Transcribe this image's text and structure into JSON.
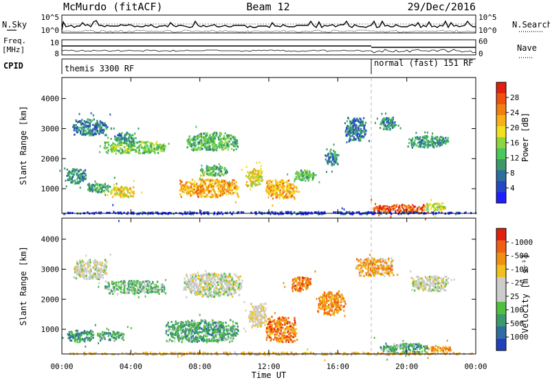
{
  "header": {
    "station": "McMurdo (fitACF)",
    "beam": "Beam 12",
    "date": "29/Dec/2016"
  },
  "strip_panels": {
    "nsky_label": "N.Sky",
    "nsky_ticks": [
      "10^5",
      "10^0"
    ],
    "nsearch_label": "N.Search",
    "nsearch_ticks": [
      "10^5",
      "10^0"
    ],
    "freq_label_1": "Freq.",
    "freq_label_2": "[MHz]",
    "freq_ticks": [
      "10",
      "8"
    ],
    "nave_label": "Nave",
    "nave_ticks": [
      "60",
      "0"
    ],
    "cpid_label": "CPID",
    "cpid_segments": [
      {
        "label": "themis 3300 RF",
        "start_hour": 0,
        "end_hour": 18
      },
      {
        "label": "normal (fast) 151 RF",
        "start_hour": 18,
        "end_hour": 24
      }
    ]
  },
  "chart_data": [
    {
      "type": "heatmap",
      "title": "",
      "ylabel": "Slant Range [km]",
      "xlim": [
        0,
        24
      ],
      "ylim": [
        180,
        4700
      ],
      "yticks": [
        "1000",
        "2000",
        "3000",
        "4000"
      ],
      "colorbar": {
        "label": "Power [dB]",
        "ticks": [
          "4",
          "8",
          "12",
          "16",
          "20",
          "24",
          "28"
        ],
        "colors": [
          "#1e1eff",
          "#2646c8",
          "#2c6e9e",
          "#3c9a6a",
          "#4cc85a",
          "#8ed43e",
          "#f0e020",
          "#f8b018",
          "#f08010",
          "#f05010",
          "#e02010"
        ]
      },
      "regions": [
        {
          "x": [
            0.6,
            2.6
          ],
          "y": [
            2800,
            3350
          ],
          "level": 0.25
        },
        {
          "x": [
            2.4,
            6.0
          ],
          "y": [
            2200,
            2600
          ],
          "level": 0.45
        },
        {
          "x": [
            3.0,
            4.2
          ],
          "y": [
            2550,
            2900
          ],
          "level": 0.3
        },
        {
          "x": [
            7.2,
            10.2
          ],
          "y": [
            2300,
            2900
          ],
          "level": 0.4
        },
        {
          "x": [
            0.2,
            1.4
          ],
          "y": [
            1200,
            1700
          ],
          "level": 0.3
        },
        {
          "x": [
            1.4,
            2.8
          ],
          "y": [
            900,
            1200
          ],
          "level": 0.35
        },
        {
          "x": [
            2.8,
            4.2
          ],
          "y": [
            750,
            1100
          ],
          "level": 0.6
        },
        {
          "x": [
            6.8,
            10.2
          ],
          "y": [
            750,
            1350
          ],
          "level": 0.7
        },
        {
          "x": [
            8.0,
            9.6
          ],
          "y": [
            1450,
            1800
          ],
          "level": 0.4
        },
        {
          "x": [
            10.6,
            11.6
          ],
          "y": [
            1100,
            1700
          ],
          "level": 0.6
        },
        {
          "x": [
            11.8,
            13.6
          ],
          "y": [
            700,
            1350
          ],
          "level": 0.7
        },
        {
          "x": [
            13.4,
            14.6
          ],
          "y": [
            1300,
            1650
          ],
          "level": 0.4
        },
        {
          "x": [
            15.2,
            16.0
          ],
          "y": [
            1800,
            2300
          ],
          "level": 0.3
        },
        {
          "x": [
            16.4,
            17.6
          ],
          "y": [
            2600,
            3400
          ],
          "level": 0.25
        },
        {
          "x": [
            18.0,
            21.2
          ],
          "y": [
            220,
            500
          ],
          "level": 0.85
        },
        {
          "x": [
            21.0,
            22.2
          ],
          "y": [
            300,
            550
          ],
          "level": 0.55
        },
        {
          "x": [
            20.0,
            22.4
          ],
          "y": [
            2400,
            2800
          ],
          "level": 0.3
        },
        {
          "x": [
            18.4,
            19.4
          ],
          "y": [
            3000,
            3400
          ],
          "level": 0.3
        },
        {
          "x": [
            0.0,
            24.0
          ],
          "y": [
            180,
            260
          ],
          "level": 0.1
        }
      ]
    },
    {
      "type": "heatmap",
      "title": "",
      "ylabel": "Slant Range [km]",
      "xlabel": "Time UT",
      "xlim": [
        0,
        24
      ],
      "ylim": [
        180,
        4700
      ],
      "xticks": [
        "00:00",
        "04:00",
        "08:00",
        "12:00",
        "16:00",
        "20:00",
        "00:00"
      ],
      "yticks": [
        "1000",
        "2000",
        "3000",
        "4000"
      ],
      "colorbar": {
        "label": "Velocity [m s⁻¹]",
        "ticks": [
          "1000",
          "500",
          "100",
          "25",
          "-25",
          "-100",
          "-500",
          "-1000"
        ],
        "colors": [
          "#2040c0",
          "#2e6ea0",
          "#3c9a6a",
          "#50c040",
          "#cccccc",
          "#cccccc",
          "#f0c020",
          "#f09010",
          "#f06010",
          "#e02010"
        ]
      },
      "regions": [
        {
          "x": [
            0.6,
            2.6
          ],
          "y": [
            2700,
            3350
          ],
          "level": 0.5
        },
        {
          "x": [
            2.4,
            6.0
          ],
          "y": [
            2200,
            2650
          ],
          "level": 0.35
        },
        {
          "x": [
            7.0,
            10.4
          ],
          "y": [
            2100,
            2900
          ],
          "level": 0.5
        },
        {
          "x": [
            0.2,
            1.8
          ],
          "y": [
            600,
            1000
          ],
          "level": 0.25
        },
        {
          "x": [
            2.0,
            3.6
          ],
          "y": [
            650,
            950
          ],
          "level": 0.3
        },
        {
          "x": [
            6.0,
            10.2
          ],
          "y": [
            600,
            1350
          ],
          "level": 0.3
        },
        {
          "x": [
            10.8,
            11.8
          ],
          "y": [
            1100,
            1900
          ],
          "level": 0.55
        },
        {
          "x": [
            11.8,
            13.6
          ],
          "y": [
            600,
            1450
          ],
          "level": 0.78
        },
        {
          "x": [
            13.2,
            14.4
          ],
          "y": [
            2300,
            2800
          ],
          "level": 0.78
        },
        {
          "x": [
            14.8,
            16.4
          ],
          "y": [
            1500,
            2300
          ],
          "level": 0.75
        },
        {
          "x": [
            18.4,
            21.2
          ],
          "y": [
            220,
            560
          ],
          "level": 0.3
        },
        {
          "x": [
            21.2,
            22.6
          ],
          "y": [
            280,
            480
          ],
          "level": 0.75
        },
        {
          "x": [
            20.2,
            22.4
          ],
          "y": [
            2300,
            2800
          ],
          "level": 0.5
        },
        {
          "x": [
            17.0,
            19.2
          ],
          "y": [
            2800,
            3400
          ],
          "level": 0.7
        },
        {
          "x": [
            0.0,
            24.0
          ],
          "y": [
            180,
            260
          ],
          "level": 0.65
        }
      ]
    }
  ]
}
